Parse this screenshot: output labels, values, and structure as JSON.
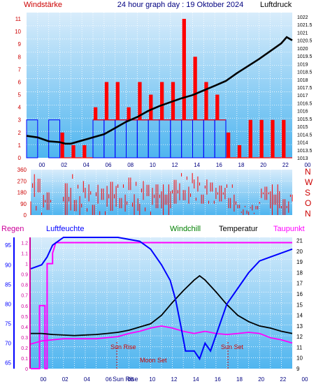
{
  "header": {
    "left_label": "Windstärke",
    "title": "24 hour graph day : 19 Oktober 2024",
    "right_label": "Luftdruck"
  },
  "colors": {
    "bg": "#ffffff",
    "plot_bg_top": "#d8ecfb",
    "plot_bg_bottom": "#4fb5ef",
    "wind_red": "#ff0000",
    "wind_blue": "#0000ff",
    "black": "#000000",
    "humidity_blue": "#0000ff",
    "windchill_green": "#008000",
    "dewpoint_magenta": "#ff00ff",
    "rain_axis_magenta": "#cc0099",
    "header_red": "#cc0000",
    "tick_blue": "#000080"
  },
  "hours": [
    "00",
    "02",
    "04",
    "06",
    "08",
    "10",
    "12",
    "14",
    "16",
    "18",
    "20",
    "22",
    "00"
  ],
  "panel1": {
    "wind_ticks": [
      "0",
      "1",
      "2",
      "3",
      "4",
      "5",
      "6",
      "7",
      "8",
      "9",
      "10",
      "11"
    ],
    "pressure_ticks": [
      "1013",
      "1013.5",
      "1014",
      "1014.5",
      "1015",
      "1015.5",
      "1016",
      "1016.5",
      "1017",
      "1017.5",
      "1018",
      "1018.5",
      "1019",
      "1019.5",
      "1020",
      "1020.5",
      "1021",
      "1021.5",
      "1022"
    ]
  },
  "panel2": {
    "deg_ticks": [
      "0",
      "90",
      "180",
      "270",
      "360"
    ],
    "compass": [
      "N",
      "W",
      "S",
      "O",
      "N"
    ]
  },
  "panel3": {
    "legend": {
      "rain": "Regen",
      "humidity": "Luftfeuchte",
      "windchill": "Windchill",
      "temperature": "Temperatur",
      "dewpoint": "Taupunkt"
    },
    "rain_ticks": [
      "0",
      "0.1",
      "0.2",
      "0.3",
      "0.4",
      "0.5",
      "0.6",
      "0.7",
      "0.8",
      "0.9",
      "1",
      "1.1",
      "1.2"
    ],
    "humidity_ticks": [
      "65",
      "70",
      "75",
      "80",
      "85",
      "90",
      "95"
    ],
    "temp_ticks": [
      "9",
      "10",
      "11",
      "12",
      "13",
      "14",
      "15",
      "16",
      "17",
      "18",
      "19",
      "20",
      "21"
    ],
    "annotations": {
      "sun_rise": "Sun Rise",
      "moon_set": "Moon Set",
      "sun_set": "Sun Set",
      "sun_rise_axis": "Sun Rise"
    }
  },
  "chart_data": [
    {
      "type": "line",
      "series": [
        {
          "name": "Luftdruck",
          "unit": "hPa",
          "points": [
            [
              0,
              1014.4
            ],
            [
              1,
              1014.3
            ],
            [
              2,
              1014.05
            ],
            [
              3,
              1014.0
            ],
            [
              3.5,
              1013.9
            ],
            [
              4,
              1013.9
            ],
            [
              5,
              1014.1
            ],
            [
              6,
              1014.3
            ],
            [
              7,
              1014.5
            ],
            [
              8,
              1014.9
            ],
            [
              9,
              1015.3
            ],
            [
              10,
              1015.6
            ],
            [
              11,
              1016.0
            ],
            [
              12,
              1016.3
            ],
            [
              13,
              1016.55
            ],
            [
              14,
              1016.8
            ],
            [
              15,
              1017.0
            ],
            [
              16,
              1017.3
            ],
            [
              17,
              1017.6
            ],
            [
              18,
              1017.9
            ],
            [
              19,
              1018.4
            ],
            [
              20,
              1018.85
            ],
            [
              21,
              1019.3
            ],
            [
              22,
              1019.8
            ],
            [
              23,
              1020.3
            ],
            [
              23.5,
              1020.7
            ],
            [
              24,
              1020.5
            ]
          ]
        },
        {
          "name": "Windstärke",
          "unit": "Bft",
          "hourly_peak": [
            3,
            0,
            3,
            2,
            1,
            1,
            4,
            6,
            6,
            4,
            6,
            5,
            6,
            6,
            11,
            8,
            6,
            5,
            2,
            1,
            3,
            3,
            3,
            3,
            3
          ],
          "hourly_base": [
            3,
            0,
            3,
            0,
            0,
            0,
            3,
            3,
            3,
            3,
            3,
            3,
            3,
            3,
            3,
            3,
            3,
            3,
            0,
            0,
            0,
            0,
            0,
            0,
            0
          ]
        }
      ],
      "y_left_range": [
        0,
        11.5
      ],
      "y_right_range": [
        1013,
        1022
      ],
      "grid": true
    },
    {
      "type": "line",
      "series": [
        {
          "name": "Windrichtung",
          "unit": "°",
          "hourly_range": [
            [
              0,
              360
            ],
            [
              0,
              200
            ],
            [
              0,
              0
            ],
            [
              0,
              360
            ],
            [
              0,
              300
            ],
            [
              0,
              270
            ],
            [
              0,
              300
            ],
            [
              0,
              330
            ],
            [
              0,
              270
            ],
            [
              0,
              330
            ],
            [
              0,
              300
            ],
            [
              0,
              270
            ],
            [
              0,
              270
            ],
            [
              90,
              360
            ],
            [
              90,
              360
            ],
            [
              90,
              330
            ],
            [
              90,
              330
            ],
            [
              90,
              270
            ],
            [
              0,
              270
            ],
            [
              0,
              90
            ],
            [
              0,
              90
            ],
            [
              90,
              240
            ],
            [
              0,
              270
            ],
            [
              0,
              180
            ],
            [
              90,
              270
            ]
          ]
        }
      ],
      "y_range": [
        0,
        360
      ],
      "grid": true
    },
    {
      "type": "line",
      "series": [
        {
          "name": "Luftfeuchte",
          "unit": "%",
          "points": [
            [
              0,
              89
            ],
            [
              1,
              90
            ],
            [
              1.5,
              92
            ],
            [
              2,
              95
            ],
            [
              3,
              97
            ],
            [
              4,
              97
            ],
            [
              5,
              97
            ],
            [
              6,
              97
            ],
            [
              8,
              97
            ],
            [
              10,
              96
            ],
            [
              11,
              94
            ],
            [
              12,
              90
            ],
            [
              12.8,
              86
            ],
            [
              13.3,
              81
            ],
            [
              13.8,
              74
            ],
            [
              14.2,
              68
            ],
            [
              15,
              68
            ],
            [
              15.5,
              66
            ],
            [
              16,
              70
            ],
            [
              16.5,
              68
            ],
            [
              17,
              72
            ],
            [
              17.5,
              76
            ],
            [
              18,
              80
            ],
            [
              19,
              84
            ],
            [
              20,
              88
            ],
            [
              21,
              91
            ],
            [
              22,
              92
            ],
            [
              23,
              93
            ],
            [
              24,
              94
            ]
          ]
        },
        {
          "name": "Temperatur",
          "unit": "°C",
          "points": [
            [
              0,
              12.3
            ],
            [
              1,
              12.3
            ],
            [
              2,
              12.2
            ],
            [
              4,
              12.1
            ],
            [
              6,
              12.2
            ],
            [
              7,
              12.3
            ],
            [
              8,
              12.4
            ],
            [
              9,
              12.6
            ],
            [
              10,
              12.9
            ],
            [
              11,
              13.2
            ],
            [
              12,
              14.0
            ],
            [
              13,
              15.2
            ],
            [
              14,
              16.3
            ],
            [
              15,
              17.3
            ],
            [
              15.5,
              17.7
            ],
            [
              16,
              17.3
            ],
            [
              17,
              16.2
            ],
            [
              18,
              15.0
            ],
            [
              19,
              14.0
            ],
            [
              20,
              13.4
            ],
            [
              21,
              13.0
            ],
            [
              22,
              12.8
            ],
            [
              23,
              12.5
            ],
            [
              24,
              12.3
            ]
          ]
        },
        {
          "name": "Taupunkt",
          "unit": "°C",
          "points": [
            [
              0,
              11.3
            ],
            [
              1,
              11.6
            ],
            [
              2,
              11.7
            ],
            [
              3,
              11.8
            ],
            [
              4,
              11.8
            ],
            [
              5,
              11.8
            ],
            [
              6,
              11.8
            ],
            [
              7,
              11.9
            ],
            [
              8,
              12.0
            ],
            [
              9,
              12.3
            ],
            [
              10,
              12.5
            ],
            [
              11,
              12.8
            ],
            [
              12,
              13.0
            ],
            [
              13,
              12.8
            ],
            [
              14,
              12.5
            ],
            [
              15,
              12.3
            ],
            [
              16,
              12.5
            ],
            [
              17,
              12.3
            ],
            [
              18,
              12.2
            ],
            [
              19,
              12.3
            ],
            [
              20,
              12.4
            ],
            [
              21,
              12.3
            ],
            [
              22,
              11.9
            ],
            [
              23,
              11.7
            ],
            [
              24,
              11.4
            ]
          ]
        },
        {
          "name": "Regen",
          "unit": "mm",
          "points": [
            [
              0,
              0
            ],
            [
              0.8,
              0
            ],
            [
              0.8,
              0.6
            ],
            [
              1.3,
              0.6
            ],
            [
              1.3,
              0
            ],
            [
              1.5,
              0
            ],
            [
              1.5,
              1.0
            ],
            [
              2.0,
              1.0
            ],
            [
              2.0,
              1.1
            ],
            [
              2.3,
              1.2
            ],
            [
              24,
              1.2
            ]
          ]
        }
      ],
      "y_left_range": [
        0,
        1.25
      ],
      "humidity_range": [
        63.5,
        97
      ],
      "y_right_range": [
        9,
        21.3
      ],
      "sun_rise_hour": 7.9,
      "sun_set_hour": 18.1,
      "grid": true
    }
  ]
}
